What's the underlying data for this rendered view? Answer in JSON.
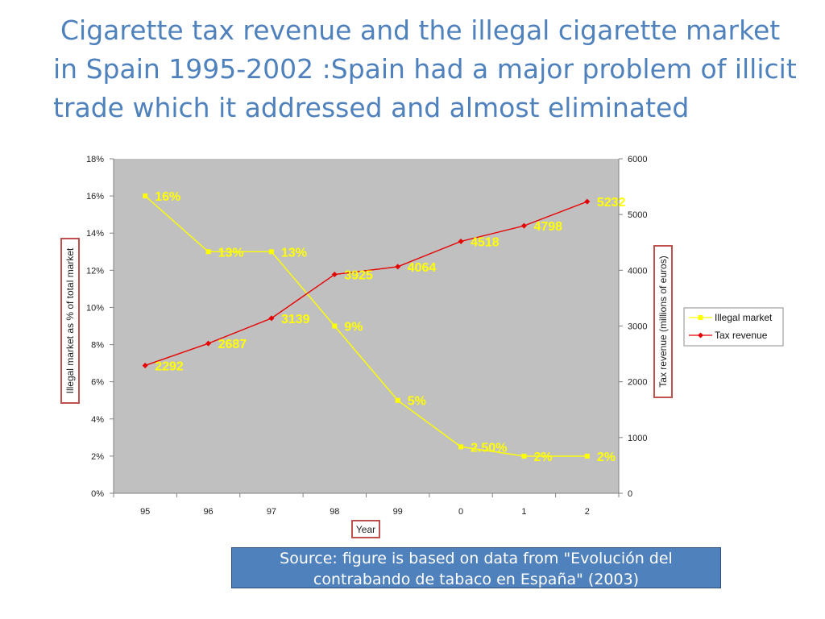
{
  "slide": {
    "title": "Cigarette tax revenue and the illegal cigarette market in Spain 1995-2002 :Spain had a major problem of illicit trade which it addressed and almost eliminated",
    "source": "Source: figure is based on data from \"Evolución del contrabando de tabaco en España\" (2003)"
  },
  "chart_data": {
    "type": "line",
    "title": "",
    "categories": [
      "95",
      "96",
      "97",
      "98",
      "99",
      "0",
      "1",
      "2"
    ],
    "xlabel": "Year",
    "ylabel": "Illegal market as % of total market",
    "y2label": "Tax revenue (millions of euros)",
    "ylim": [
      0,
      18
    ],
    "y2lim": [
      0,
      6000
    ],
    "yticks": [
      "0%",
      "2%",
      "4%",
      "6%",
      "8%",
      "10%",
      "12%",
      "14%",
      "16%",
      "18%"
    ],
    "y2ticks": [
      "0",
      "1000",
      "2000",
      "3000",
      "4000",
      "5000",
      "6000"
    ],
    "grid": false,
    "plot_background": "#c0c0c0",
    "legend_position": "right",
    "series": [
      {
        "name": "Illegal market",
        "axis": "left",
        "color": "#ffff00",
        "marker": "square",
        "values": [
          16,
          13,
          13,
          9,
          5,
          2.5,
          2,
          2
        ],
        "labels": [
          "16%",
          "13%",
          "13%",
          "9%",
          "5%",
          "2.50%",
          "2%",
          "2%"
        ]
      },
      {
        "name": "Tax revenue",
        "axis": "right",
        "color": "#e60000",
        "marker": "diamond",
        "values": [
          2292,
          2687,
          3139,
          3925,
          4064,
          4518,
          4798,
          5232
        ],
        "labels": [
          "2292",
          "2687",
          "3139",
          "3925",
          "4064",
          "4518",
          "4798",
          "5232"
        ]
      }
    ]
  }
}
